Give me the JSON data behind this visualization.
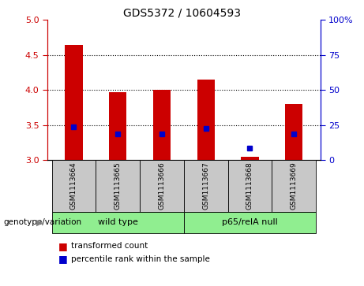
{
  "title": "GDS5372 / 10604593",
  "samples": [
    "GSM1113664",
    "GSM1113665",
    "GSM1113666",
    "GSM1113667",
    "GSM1113668",
    "GSM1113669"
  ],
  "bar_values": [
    4.65,
    3.97,
    4.0,
    4.15,
    3.05,
    3.8
  ],
  "blue_values": [
    3.48,
    3.37,
    3.37,
    3.45,
    3.17,
    3.37
  ],
  "bar_color": "#cc0000",
  "blue_color": "#0000cc",
  "bar_bottom": 3.0,
  "ylim": [
    3.0,
    5.0
  ],
  "yticks_left": [
    3.0,
    3.5,
    4.0,
    4.5,
    5.0
  ],
  "yticks_right_vals": [
    0,
    25,
    50,
    75,
    100
  ],
  "yticks_right_labels": [
    "0",
    "25",
    "50",
    "75",
    "100%"
  ],
  "ylim_right": [
    0,
    100
  ],
  "grid_values": [
    3.5,
    4.0,
    4.5
  ],
  "group1_label": "wild type",
  "group2_label": "p65/relA null",
  "group1_indices": [
    0,
    1,
    2
  ],
  "group2_indices": [
    3,
    4,
    5
  ],
  "group_color": "#90ee90",
  "sample_bg": "#c8c8c8",
  "legend_red": "transformed count",
  "legend_blue": "percentile rank within the sample",
  "genotype_label": "genotype/variation",
  "title_color": "#000000",
  "left_tick_color": "#cc0000",
  "right_tick_color": "#0000cc",
  "fig_bg": "#ffffff",
  "bar_width": 0.4,
  "label_fontsize": 7.5,
  "title_fontsize": 10
}
